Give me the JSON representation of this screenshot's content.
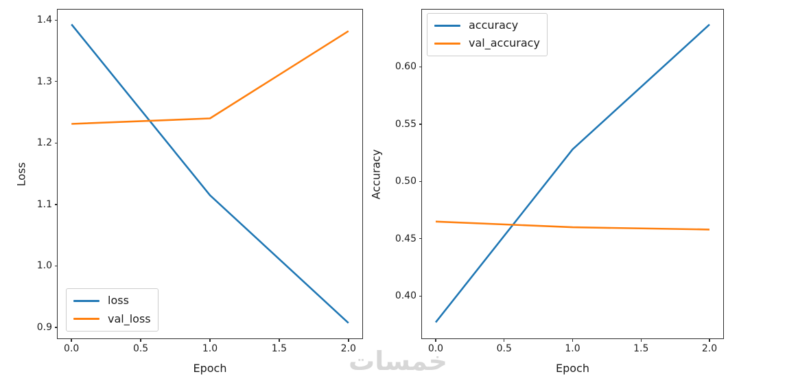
{
  "figure": {
    "background": "#ffffff",
    "watermark_text": "خمسات",
    "watermark_color": "#d7d7d7"
  },
  "colors": {
    "line_blue": "#1f77b4",
    "line_orange": "#ff7f0e",
    "spine": "#2b2b2b",
    "text": "#1a1a1a",
    "legend_border": "#cccccc"
  },
  "chart_data": [
    {
      "type": "line",
      "title": "",
      "xlabel": "Epoch",
      "ylabel": "Loss",
      "x": [
        0,
        1,
        2
      ],
      "series": [
        {
          "name": "loss",
          "color": "#1f77b4",
          "values": [
            1.393,
            1.115,
            0.907
          ]
        },
        {
          "name": "val_loss",
          "color": "#ff7f0e",
          "values": [
            1.231,
            1.24,
            1.382
          ]
        }
      ],
      "xlim": [
        -0.1,
        2.1
      ],
      "ylim": [
        0.882,
        1.417
      ],
      "xticks": [
        0.0,
        0.5,
        1.0,
        1.5,
        2.0
      ],
      "xtick_labels": [
        "0.0",
        "0.5",
        "1.0",
        "1.5",
        "2.0"
      ],
      "yticks": [
        0.9,
        1.0,
        1.1,
        1.2,
        1.3,
        1.4
      ],
      "ytick_labels": [
        "0.9",
        "1.0",
        "1.1",
        "1.2",
        "1.3",
        "1.4"
      ],
      "legend_position": "lower-left",
      "grid": false
    },
    {
      "type": "line",
      "title": "",
      "xlabel": "Epoch",
      "ylabel": "Accuracy",
      "x": [
        0,
        1,
        2
      ],
      "series": [
        {
          "name": "accuracy",
          "color": "#1f77b4",
          "values": [
            0.377,
            0.528,
            0.637
          ]
        },
        {
          "name": "val_accuracy",
          "color": "#ff7f0e",
          "values": [
            0.465,
            0.46,
            0.458
          ]
        }
      ],
      "xlim": [
        -0.1,
        2.1
      ],
      "ylim": [
        0.363,
        0.65
      ],
      "xticks": [
        0.0,
        0.5,
        1.0,
        1.5,
        2.0
      ],
      "xtick_labels": [
        "0.0",
        "0.5",
        "1.0",
        "1.5",
        "2.0"
      ],
      "yticks": [
        0.4,
        0.45,
        0.5,
        0.55,
        0.6
      ],
      "ytick_labels": [
        "0.40",
        "0.45",
        "0.50",
        "0.55",
        "0.60"
      ],
      "legend_position": "upper-left",
      "grid": false
    }
  ]
}
